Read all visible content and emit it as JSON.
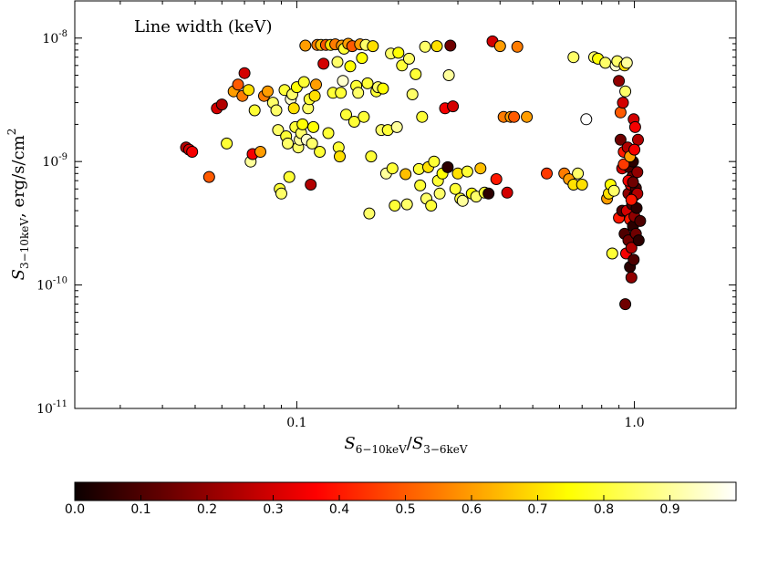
{
  "chart_data": {
    "type": "scatter",
    "title": "Line width (keV)",
    "xlabel": {
      "base": "S",
      "sub": "6−10keV",
      "slash": "/",
      "base2": "S",
      "sub2": "3−6keV"
    },
    "ylabel": {
      "base": "S",
      "sub": "3−10keV",
      "unit": ", erg/s/cm",
      "sup": "2"
    },
    "x_scale": "log",
    "y_scale": "log",
    "xlim": [
      0.022,
      2.0
    ],
    "ylim": [
      1e-11,
      2e-08
    ],
    "x_ticks": [
      {
        "value": 0.1,
        "label": "0.1"
      },
      {
        "value": 1.0,
        "label": "1.0"
      }
    ],
    "y_ticks": [
      {
        "value": 1e-11,
        "base": "10",
        "exp": "-11"
      },
      {
        "value": 1e-10,
        "base": "10",
        "exp": "-10"
      },
      {
        "value": 1e-09,
        "base": "10",
        "exp": "-9"
      },
      {
        "value": 1e-08,
        "base": "10",
        "exp": "-8"
      }
    ],
    "colorbar": {
      "label_ticks": [
        "0.0",
        "0.1",
        "0.2",
        "0.3",
        "0.4",
        "0.5",
        "0.6",
        "0.7",
        "0.8",
        "0.9"
      ],
      "range": [
        0.0,
        1.0
      ],
      "colormap": "hot"
    },
    "points": [
      [
        0.047,
        1.3e-09,
        0.25
      ],
      [
        0.048,
        1.25e-09,
        0.3
      ],
      [
        0.049,
        1.2e-09,
        0.35
      ],
      [
        0.055,
        7.5e-10,
        0.5
      ],
      [
        0.058,
        2.7e-09,
        0.3
      ],
      [
        0.06,
        2.9e-09,
        0.25
      ],
      [
        0.062,
        1.4e-09,
        0.8
      ],
      [
        0.065,
        3.7e-09,
        0.6
      ],
      [
        0.067,
        4.2e-09,
        0.5
      ],
      [
        0.069,
        3.4e-09,
        0.55
      ],
      [
        0.07,
        5.2e-09,
        0.3
      ],
      [
        0.072,
        3.8e-09,
        0.7
      ],
      [
        0.073,
        1e-09,
        0.9
      ],
      [
        0.074,
        1.15e-09,
        0.35
      ],
      [
        0.075,
        2.6e-09,
        0.8
      ],
      [
        0.078,
        1.2e-09,
        0.6
      ],
      [
        0.08,
        3.4e-09,
        0.55
      ],
      [
        0.082,
        3.7e-09,
        0.6
      ],
      [
        0.085,
        3e-09,
        0.85
      ],
      [
        0.087,
        2.6e-09,
        0.85
      ],
      [
        0.088,
        1.8e-09,
        0.85
      ],
      [
        0.089,
        6e-10,
        0.8
      ],
      [
        0.09,
        5.5e-10,
        0.85
      ],
      [
        0.092,
        3.8e-09,
        0.8
      ],
      [
        0.093,
        1.6e-09,
        0.8
      ],
      [
        0.094,
        1.4e-09,
        0.85
      ],
      [
        0.095,
        7.5e-10,
        0.8
      ],
      [
        0.096,
        3.2e-09,
        0.95
      ],
      [
        0.097,
        3.5e-09,
        0.85
      ],
      [
        0.098,
        2.7e-09,
        0.7
      ],
      [
        0.099,
        1.9e-09,
        0.8
      ],
      [
        0.1,
        4e-09,
        0.75
      ],
      [
        0.101,
        1.3e-09,
        0.85
      ],
      [
        0.102,
        1.5e-09,
        0.9
      ],
      [
        0.103,
        1.7e-09,
        0.85
      ],
      [
        0.104,
        2e-09,
        0.75
      ],
      [
        0.105,
        4.4e-09,
        0.8
      ],
      [
        0.106,
        8.7e-09,
        0.6
      ],
      [
        0.107,
        1.5e-09,
        0.95
      ],
      [
        0.108,
        2.7e-09,
        0.85
      ],
      [
        0.109,
        3.2e-09,
        0.8
      ],
      [
        0.11,
        6.5e-10,
        0.25
      ],
      [
        0.111,
        1.4e-09,
        0.85
      ],
      [
        0.112,
        1.9e-09,
        0.75
      ],
      [
        0.113,
        3.4e-09,
        0.7
      ],
      [
        0.114,
        4.2e-09,
        0.6
      ],
      [
        0.115,
        8.8e-09,
        0.55
      ],
      [
        0.117,
        1.2e-09,
        0.8
      ],
      [
        0.118,
        8.8e-09,
        0.65
      ],
      [
        0.12,
        6.2e-09,
        0.3
      ],
      [
        0.122,
        8.8e-09,
        0.5
      ],
      [
        0.124,
        1.7e-09,
        0.8
      ],
      [
        0.126,
        8.8e-09,
        0.7
      ],
      [
        0.128,
        3.6e-09,
        0.8
      ],
      [
        0.13,
        8.9e-09,
        0.55
      ],
      [
        0.132,
        6.4e-09,
        0.85
      ],
      [
        0.133,
        1.3e-09,
        0.8
      ],
      [
        0.134,
        1.1e-09,
        0.7
      ],
      [
        0.135,
        3.6e-09,
        0.8
      ],
      [
        0.136,
        8.7e-09,
        0.6
      ],
      [
        0.137,
        4.5e-09,
        0.95
      ],
      [
        0.138,
        8.2e-09,
        0.8
      ],
      [
        0.14,
        2.4e-09,
        0.8
      ],
      [
        0.142,
        9e-09,
        0.6
      ],
      [
        0.144,
        5.9e-09,
        0.75
      ],
      [
        0.146,
        8.6e-09,
        0.5
      ],
      [
        0.148,
        2.1e-09,
        0.8
      ],
      [
        0.15,
        4.1e-09,
        0.8
      ],
      [
        0.152,
        3.6e-09,
        0.85
      ],
      [
        0.154,
        8.9e-09,
        0.6
      ],
      [
        0.156,
        6.9e-09,
        0.75
      ],
      [
        0.158,
        2.3e-09,
        0.8
      ],
      [
        0.16,
        8.8e-09,
        0.85
      ],
      [
        0.162,
        4.3e-09,
        0.8
      ],
      [
        0.164,
        3.8e-10,
        0.85
      ],
      [
        0.166,
        1.1e-09,
        0.8
      ],
      [
        0.168,
        8.6e-09,
        0.7
      ],
      [
        0.172,
        3.7e-09,
        0.8
      ],
      [
        0.174,
        4e-09,
        0.85
      ],
      [
        0.178,
        1.8e-09,
        0.85
      ],
      [
        0.18,
        3.9e-09,
        0.75
      ],
      [
        0.184,
        8e-10,
        0.9
      ],
      [
        0.186,
        1.8e-09,
        0.8
      ],
      [
        0.19,
        7.5e-09,
        0.85
      ],
      [
        0.192,
        8.8e-10,
        0.8
      ],
      [
        0.195,
        4.4e-10,
        0.8
      ],
      [
        0.198,
        1.9e-09,
        0.9
      ],
      [
        0.2,
        7.6e-09,
        0.75
      ],
      [
        0.205,
        6e-09,
        0.8
      ],
      [
        0.21,
        7.9e-10,
        0.65
      ],
      [
        0.212,
        4.5e-10,
        0.85
      ],
      [
        0.215,
        6.8e-09,
        0.85
      ],
      [
        0.22,
        3.5e-09,
        0.85
      ],
      [
        0.225,
        5.1e-09,
        0.8
      ],
      [
        0.23,
        8.7e-10,
        0.8
      ],
      [
        0.232,
        6.4e-10,
        0.8
      ],
      [
        0.235,
        2.3e-09,
        0.8
      ],
      [
        0.24,
        8.5e-09,
        0.85
      ],
      [
        0.242,
        5e-10,
        0.85
      ],
      [
        0.245,
        9e-10,
        0.7
      ],
      [
        0.25,
        4.4e-10,
        0.8
      ],
      [
        0.255,
        1e-09,
        0.8
      ],
      [
        0.26,
        8.6e-09,
        0.7
      ],
      [
        0.262,
        7e-10,
        0.8
      ],
      [
        0.265,
        5.5e-10,
        0.85
      ],
      [
        0.27,
        8e-10,
        0.75
      ],
      [
        0.275,
        2.7e-09,
        0.35
      ],
      [
        0.28,
        9e-10,
        0.05
      ],
      [
        0.282,
        5e-09,
        0.9
      ],
      [
        0.285,
        8.7e-09,
        0.15
      ],
      [
        0.29,
        2.8e-09,
        0.3
      ],
      [
        0.295,
        6e-10,
        0.8
      ],
      [
        0.3,
        8e-10,
        0.7
      ],
      [
        0.305,
        5e-10,
        0.8
      ],
      [
        0.31,
        4.8e-10,
        0.9
      ],
      [
        0.32,
        8.3e-10,
        0.8
      ],
      [
        0.33,
        5.5e-10,
        0.75
      ],
      [
        0.34,
        5.2e-10,
        0.85
      ],
      [
        0.35,
        8.8e-10,
        0.65
      ],
      [
        0.36,
        5.6e-10,
        0.8
      ],
      [
        0.37,
        5.5e-10,
        0.05
      ],
      [
        0.38,
        9.4e-09,
        0.3
      ],
      [
        0.39,
        7.2e-10,
        0.4
      ],
      [
        0.4,
        8.6e-09,
        0.6
      ],
      [
        0.41,
        2.3e-09,
        0.55
      ],
      [
        0.42,
        5.6e-10,
        0.3
      ],
      [
        0.43,
        2.3e-09,
        0.6
      ],
      [
        0.44,
        2.3e-09,
        0.5
      ],
      [
        0.45,
        8.5e-09,
        0.55
      ],
      [
        0.48,
        2.3e-09,
        0.6
      ],
      [
        0.55,
        8e-10,
        0.45
      ],
      [
        0.62,
        8e-10,
        0.55
      ],
      [
        0.64,
        7.2e-10,
        0.6
      ],
      [
        0.66,
        6.5e-10,
        0.7
      ],
      [
        0.66,
        7e-09,
        0.85
      ],
      [
        0.68,
        8e-10,
        0.85
      ],
      [
        0.7,
        6.5e-10,
        0.7
      ],
      [
        0.72,
        2.2e-09,
        1.0
      ],
      [
        0.76,
        7e-09,
        0.85
      ],
      [
        0.78,
        6.8e-09,
        0.75
      ],
      [
        0.82,
        6.3e-09,
        0.85
      ],
      [
        0.83,
        5e-10,
        0.6
      ],
      [
        0.84,
        5.5e-10,
        0.7
      ],
      [
        0.85,
        6.5e-10,
        0.75
      ],
      [
        0.86,
        1.8e-10,
        0.8
      ],
      [
        0.87,
        5.8e-10,
        0.85
      ],
      [
        0.88,
        6e-09,
        0.95
      ],
      [
        0.89,
        6.5e-09,
        0.85
      ],
      [
        0.9,
        3.5e-10,
        0.4
      ],
      [
        0.9,
        4.5e-09,
        0.2
      ],
      [
        0.91,
        2.5e-09,
        0.5
      ],
      [
        0.91,
        1.5e-09,
        0.15
      ],
      [
        0.92,
        4e-10,
        0.1
      ],
      [
        0.92,
        8.8e-10,
        0.3
      ],
      [
        0.925,
        3e-09,
        0.3
      ],
      [
        0.93,
        1.2e-09,
        0.4
      ],
      [
        0.935,
        2.6e-10,
        0.1
      ],
      [
        0.935,
        6e-09,
        0.7
      ],
      [
        0.94,
        3.7e-09,
        0.85
      ],
      [
        0.94,
        7e-11,
        0.15
      ],
      [
        0.945,
        1.8e-10,
        0.35
      ],
      [
        0.95,
        4e-10,
        0.3
      ],
      [
        0.95,
        6.3e-09,
        0.9
      ],
      [
        0.955,
        1.3e-09,
        0.25
      ],
      [
        0.96,
        2.3e-10,
        0.15
      ],
      [
        0.96,
        5.5e-10,
        0.2
      ],
      [
        0.965,
        9e-10,
        0.1
      ],
      [
        0.97,
        1.4e-10,
        0.05
      ],
      [
        0.97,
        3.4e-10,
        0.4
      ],
      [
        0.975,
        6.5e-10,
        0.3
      ],
      [
        0.98,
        1.15e-10,
        0.2
      ],
      [
        0.98,
        2e-10,
        0.25
      ],
      [
        0.985,
        4.5e-10,
        0.1
      ],
      [
        0.985,
        7.5e-10,
        0.15
      ],
      [
        0.99,
        1e-09,
        0.05
      ],
      [
        0.99,
        3e-10,
        0.05
      ],
      [
        0.995,
        2.2e-09,
        0.3
      ],
      [
        0.995,
        1.6e-10,
        0.1
      ],
      [
        1.0,
        5.3e-10,
        0.05
      ],
      [
        1.0,
        3.6e-10,
        0.2
      ],
      [
        1.005,
        1.9e-09,
        0.35
      ],
      [
        1.01,
        2.6e-10,
        0.15
      ],
      [
        1.01,
        6.1e-10,
        0.1
      ],
      [
        1.015,
        4.2e-10,
        0.05
      ],
      [
        1.02,
        8.2e-10,
        0.2
      ],
      [
        1.025,
        1.5e-09,
        0.25
      ],
      [
        1.03,
        2.3e-10,
        0.05
      ],
      [
        1.04,
        3.3e-10,
        0.1
      ],
      [
        0.93,
        9.5e-10,
        0.45
      ],
      [
        0.97,
        1.1e-09,
        0.6
      ],
      [
        1.0,
        1.25e-09,
        0.35
      ],
      [
        0.96,
        7e-10,
        0.35
      ],
      [
        0.99,
        6.8e-10,
        0.15
      ],
      [
        1.02,
        5.5e-10,
        0.25
      ],
      [
        0.98,
        4.9e-10,
        0.4
      ]
    ]
  }
}
